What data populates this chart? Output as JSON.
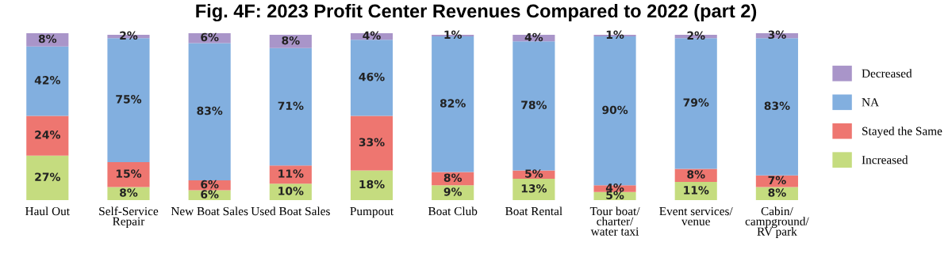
{
  "chart_data": {
    "type": "bar",
    "title": "Fig. 4F: 2023 Profit Center Revenues Compared to 2022 (part 2)",
    "categories": [
      "Haul Out",
      "Self-Service\nRepair",
      "New Boat Sales",
      "Used Boat Sales",
      "Pumpout",
      "Boat Club",
      "Boat Rental",
      "Tour boat/\ncharter/\nwater taxi",
      "Event services/\nvenue",
      "Cabin/\ncampground/\nRV park"
    ],
    "stacked": true,
    "legend": "right",
    "series": [
      {
        "name": "Increased",
        "color": "#c5dc7f",
        "values": [
          27,
          8,
          6,
          10,
          18,
          9,
          13,
          5,
          11,
          8
        ],
        "value_labels": [
          "27%",
          "8%",
          "6%",
          "10%",
          "18%",
          "9%",
          "13%",
          "5%",
          "11%",
          "8%"
        ]
      },
      {
        "name": "Stayed the Same",
        "color": "#ee7670",
        "values": [
          24,
          15,
          6,
          11,
          33,
          8,
          5,
          4,
          8,
          7
        ],
        "value_labels": [
          "24%",
          "15%",
          "6%",
          "11%",
          "33%",
          "8%",
          "5%",
          "4%",
          "8%",
          "7%"
        ]
      },
      {
        "name": "NA",
        "color": "#82afdf",
        "values": [
          42,
          75,
          83,
          71,
          46,
          82,
          78,
          90,
          79,
          83
        ],
        "value_labels": [
          "42%",
          "75%",
          "83%",
          "71%",
          "46%",
          "82%",
          "78%",
          "90%",
          "79%",
          "83%"
        ]
      },
      {
        "name": "Decreased",
        "color": "#a995c9",
        "values": [
          8,
          2,
          6,
          8,
          4,
          1,
          4,
          1,
          2,
          3
        ],
        "value_labels": [
          "8%",
          "2%",
          "6%",
          "8%",
          "4%",
          "1%",
          "4%",
          "1%",
          "2%",
          "3%"
        ]
      }
    ]
  }
}
